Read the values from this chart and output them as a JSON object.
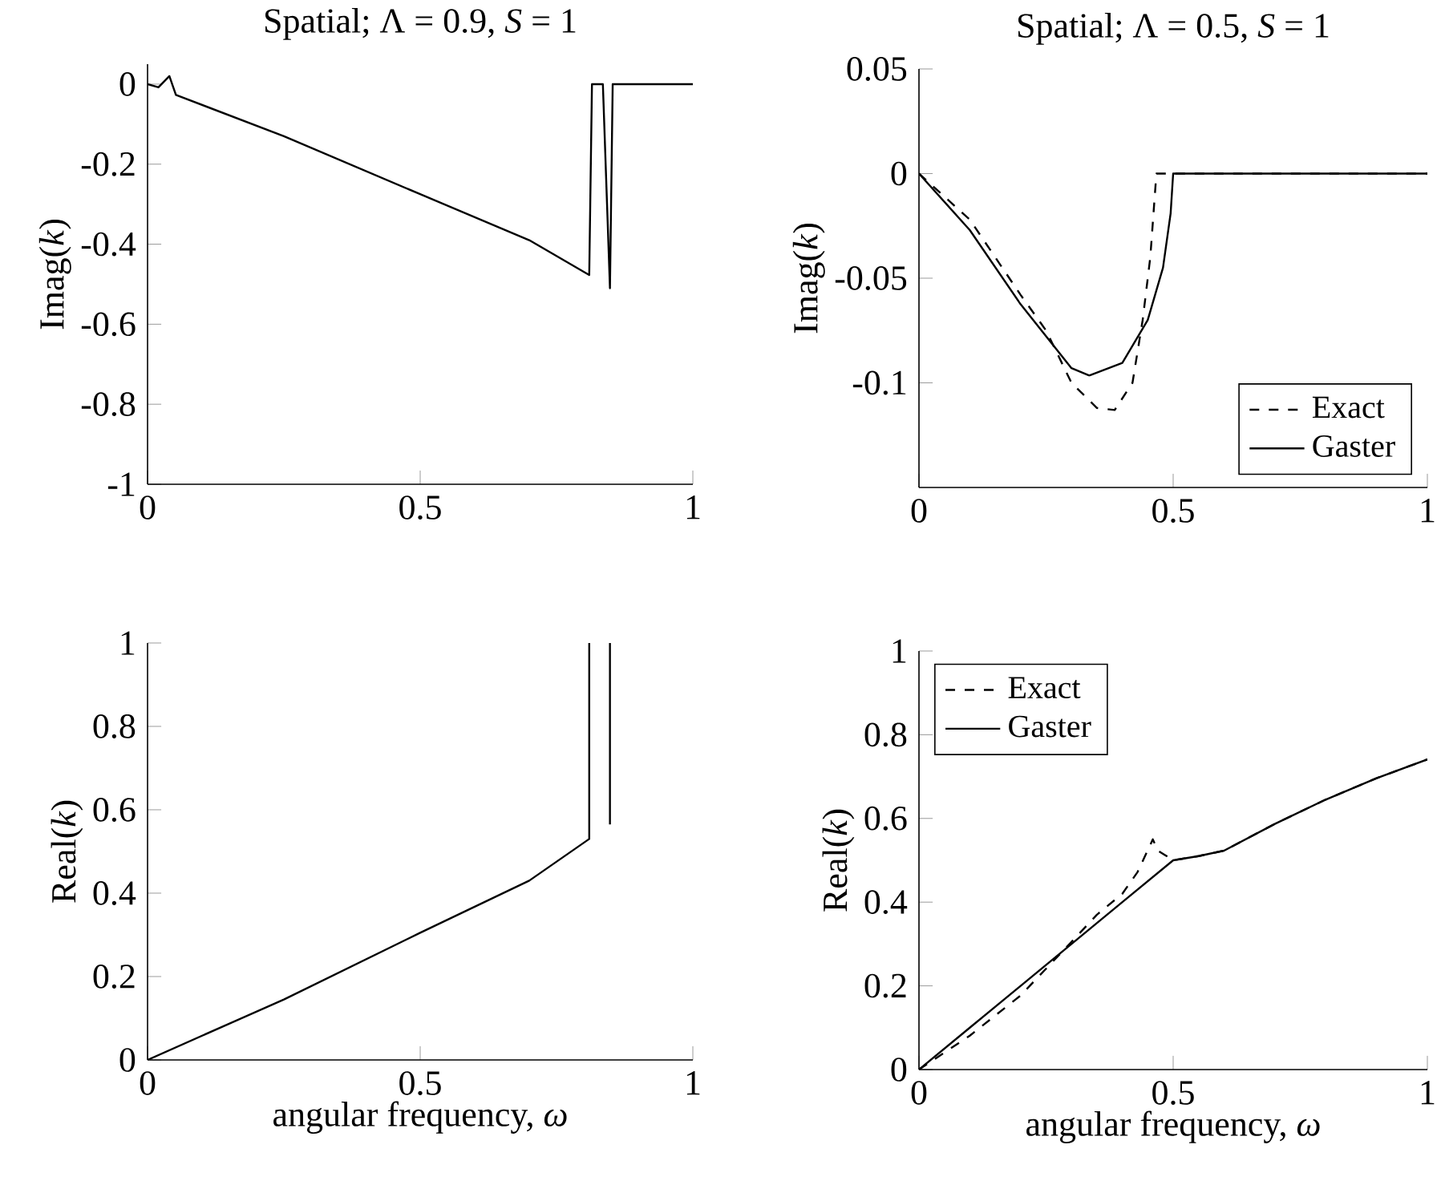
{
  "chart_data": [
    {
      "type": "line",
      "title": "Spatial; Λ = 0.9, *S* = 1",
      "ylabel": "Imag(*k*)",
      "xlim": [
        0,
        1
      ],
      "xticks": [
        0,
        0.5,
        1
      ],
      "ylim": [
        -1,
        0.05
      ],
      "yticks": [
        -1,
        -0.8,
        -0.6,
        -0.4,
        -0.2,
        0
      ],
      "series": [
        {
          "color": "#000000",
          "x": [
            0,
            0.02,
            0.04,
            0.052,
            0.25,
            0.5,
            0.7,
            0.81,
            0.815,
            0.835,
            0.848,
            0.853,
            1
          ],
          "values": [
            0,
            -0.008,
            0.02,
            -0.027,
            -0.13,
            -0.275,
            -0.39,
            -0.477,
            0,
            0,
            -0.51,
            0,
            0
          ]
        }
      ]
    },
    {
      "type": "line",
      "title": "Spatial; Λ = 0.5, *S* = 1",
      "ylabel": "Imag(*k*)",
      "xlim": [
        0,
        1
      ],
      "xticks": [
        0,
        0.5,
        1
      ],
      "ylim": [
        -0.15,
        0.05
      ],
      "yticks": [
        -0.1,
        -0.05,
        0,
        0.05
      ],
      "legend": "bottom right",
      "series": [
        {
          "name": "Exact",
          "color": "#000000",
          "line_style": "dashed",
          "x": [
            0,
            0.1,
            0.2,
            0.25,
            0.3,
            0.35,
            0.385,
            0.42,
            0.44,
            0.455,
            0.467,
            1
          ],
          "values": [
            0,
            -0.022,
            -0.058,
            -0.075,
            -0.1,
            -0.112,
            -0.113,
            -0.1,
            -0.07,
            -0.04,
            0,
            0
          ]
        },
        {
          "name": "Gaster",
          "color": "#000000",
          "line_style": "solid",
          "x": [
            0,
            0.1,
            0.2,
            0.3,
            0.335,
            0.4,
            0.45,
            0.48,
            0.495,
            0.5,
            1
          ],
          "values": [
            0,
            -0.027,
            -0.0625,
            -0.093,
            -0.0965,
            -0.0905,
            -0.07,
            -0.045,
            -0.019,
            0,
            0
          ]
        }
      ]
    },
    {
      "type": "line",
      "xlabel": "angular frequency, *ω*",
      "ylabel": "Real(*k*)",
      "xlim": [
        0,
        1
      ],
      "xticks": [
        0,
        0.5,
        1
      ],
      "ylim": [
        0,
        1
      ],
      "yticks": [
        0,
        0.2,
        0.4,
        0.6,
        0.8,
        1
      ],
      "series": [
        {
          "color": "#000000",
          "x": [
            0,
            0.25,
            0.5,
            0.7,
            0.81,
            0.81,
            0.83,
            0.848,
            0.848
          ],
          "values": [
            0,
            0.145,
            0.305,
            0.43,
            0.53,
            1,
            null,
            1,
            0.565
          ]
        }
      ]
    },
    {
      "type": "line",
      "xlabel": "angular frequency, *ω*",
      "ylabel": "Real(*k*)",
      "xlim": [
        0,
        1
      ],
      "xticks": [
        0,
        0.5,
        1
      ],
      "ylim": [
        0,
        1
      ],
      "yticks": [
        0,
        0.2,
        0.4,
        0.6,
        0.8,
        1
      ],
      "legend": "top left",
      "series": [
        {
          "name": "Exact",
          "color": "#000000",
          "line_style": "dashed",
          "x": [
            0,
            0.1,
            0.2,
            0.3,
            0.35,
            0.4,
            0.43,
            0.46,
            0.47,
            0.5,
            0.55,
            0.6,
            0.7,
            0.8,
            0.9,
            1
          ],
          "values": [
            0,
            0.081,
            0.177,
            0.305,
            0.37,
            0.42,
            0.472,
            0.55,
            0.523,
            0.5,
            0.51,
            0.523,
            0.587,
            0.645,
            0.696,
            0.741
          ]
        },
        {
          "name": "Gaster",
          "color": "#000000",
          "line_style": "solid",
          "x": [
            0,
            0.1,
            0.2,
            0.3,
            0.4,
            0.5,
            0.55,
            0.6,
            0.7,
            0.8,
            0.9,
            1
          ],
          "values": [
            0,
            0.1,
            0.2,
            0.3,
            0.4,
            0.5,
            0.51,
            0.523,
            0.587,
            0.645,
            0.696,
            0.741
          ]
        }
      ]
    }
  ]
}
